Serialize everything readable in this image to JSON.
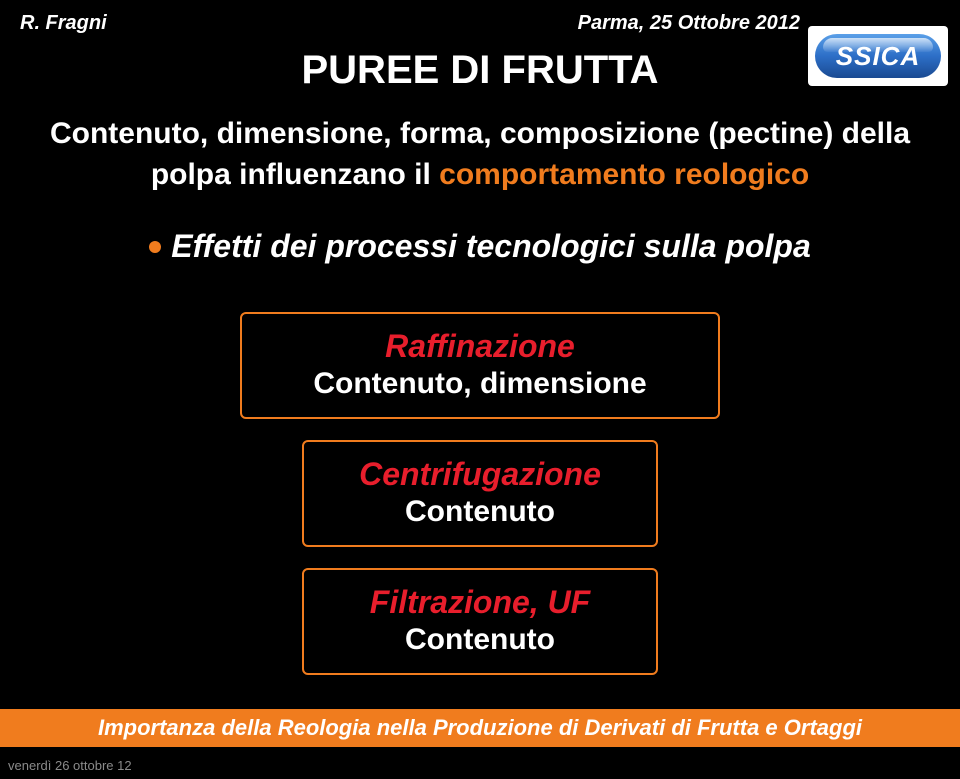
{
  "colors": {
    "background": "#000000",
    "white": "#ffffff",
    "orange": "#f07c1e",
    "red": "#e81e2c",
    "bulletDot": "#f07c1e",
    "logoText": "#ffffff",
    "footerBg": "#f07c1e",
    "footerText": "#ffffff",
    "timestamp": "#8a8a8a"
  },
  "fontsizes": {
    "header": 20,
    "title": 40,
    "subtitle": 30,
    "bullet": 32,
    "boxLine1": 32,
    "boxLine2": 30,
    "footer": 22,
    "logo": 26,
    "timestamp": 13
  },
  "header": {
    "left": "R. Fragni",
    "right": "Parma, 25 Ottobre 2012"
  },
  "logo": {
    "text": "SSICA"
  },
  "title": "PUREE DI FRUTTA",
  "subtitle": {
    "plain1": "Contenuto, dimensione, forma, composizione (pectine) della polpa influenzano il ",
    "emph": "comportamento reologico"
  },
  "bullet": {
    "text": "Effetti dei processi tecnologici sulla polpa"
  },
  "boxes": [
    {
      "line1": "Raffinazione",
      "line2": "Contenuto, dimensione"
    },
    {
      "line1": "Centrifugazione",
      "line2": "Contenuto"
    },
    {
      "line1": "Filtrazione, UF",
      "line2": "Contenuto"
    }
  ],
  "footer": "Importanza della Reologia nella Produzione di Derivati di Frutta e Ortaggi",
  "timestamp": "venerdì 26 ottobre 12"
}
